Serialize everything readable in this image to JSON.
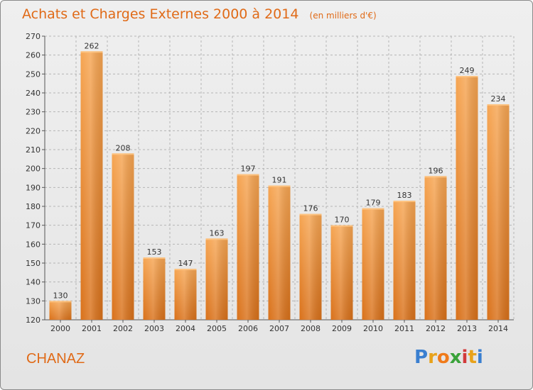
{
  "header": {
    "title": "Achats et Charges Externes 2000 à 2014",
    "subtitle": "(en milliers d'€)"
  },
  "footer": {
    "commune": "CHANAZ",
    "brand_letters": [
      "P",
      "r",
      "o",
      "x",
      "i",
      "t",
      "i"
    ],
    "brand_colors": [
      "#3a7fd0",
      "#e8a21a",
      "#f07a1a",
      "#3aa23a",
      "#d23a3a",
      "#e8a21a",
      "#3a7fd0"
    ]
  },
  "colors": {
    "bar_top": "#f6a552",
    "bar_bottom": "#d9711a",
    "grid": "#b5b5b5",
    "accent": "#e06a17"
  },
  "chart_data": {
    "type": "bar",
    "title": "Achats et Charges Externes 2000 à 2014",
    "subtitle": "(en milliers d'€)",
    "categories": [
      "2000",
      "2001",
      "2002",
      "2003",
      "2004",
      "2005",
      "2006",
      "2007",
      "2008",
      "2009",
      "2010",
      "2011",
      "2012",
      "2013",
      "2014"
    ],
    "values": [
      130,
      262,
      208,
      153,
      147,
      163,
      197,
      191,
      176,
      170,
      179,
      183,
      196,
      249,
      234
    ],
    "ylim": [
      120,
      270
    ],
    "yticks": [
      120,
      130,
      140,
      150,
      160,
      170,
      180,
      190,
      200,
      210,
      220,
      230,
      240,
      250,
      260,
      270
    ],
    "grid": true,
    "legend": "none"
  }
}
